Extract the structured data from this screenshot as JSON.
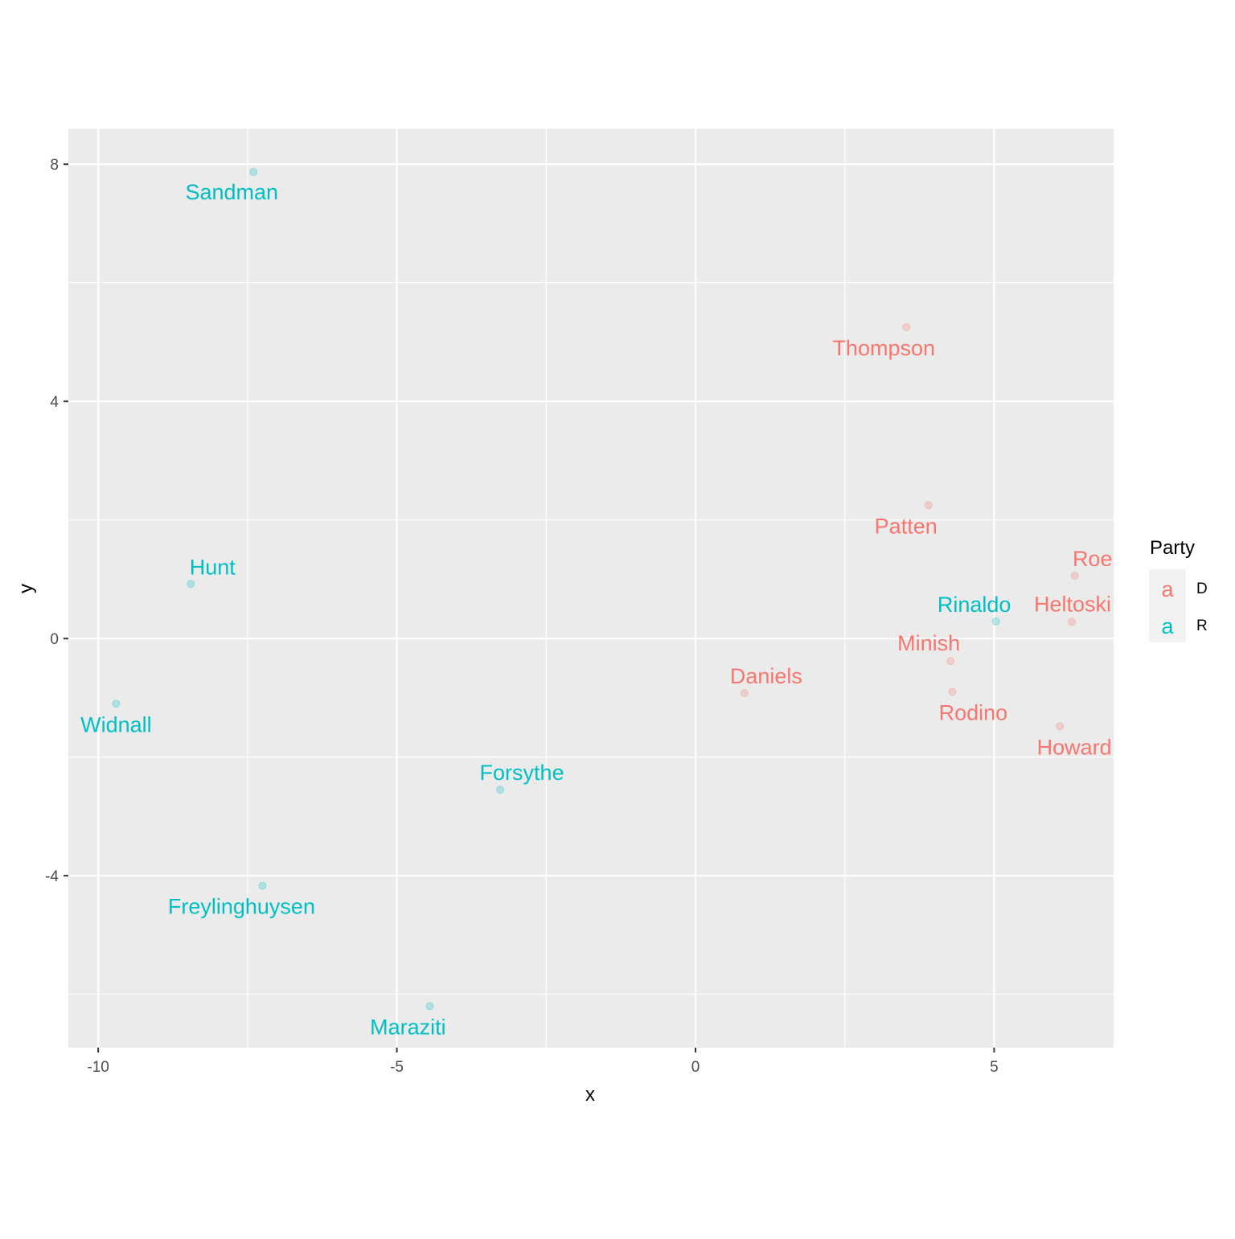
{
  "chart_data": {
    "type": "scatter",
    "title": "",
    "xlabel": "x",
    "ylabel": "y",
    "xlim": [
      -10.5,
      7.0
    ],
    "ylim": [
      -6.9,
      8.6
    ],
    "x_ticks": [
      -10,
      -5,
      0,
      5
    ],
    "x_tick_labels": [
      "-10",
      "-5",
      "0",
      "5"
    ],
    "y_ticks": [
      -4,
      0,
      4,
      8
    ],
    "y_tick_labels": [
      "-4",
      "0",
      "4",
      "8"
    ],
    "grid": true,
    "legend": {
      "title": "Party",
      "placement": "right",
      "entries": [
        {
          "key": "D",
          "label": "D",
          "color": "#F8766D",
          "glyph": "a"
        },
        {
          "key": "R",
          "label": "R",
          "color": "#00BFC4",
          "glyph": "a"
        }
      ]
    },
    "points": [
      {
        "label": "Sandman",
        "party": "R",
        "x": -7.4,
        "y": 7.87
      },
      {
        "label": "Hunt",
        "party": "R",
        "x": -8.45,
        "y": 0.92
      },
      {
        "label": "Widnall",
        "party": "R",
        "x": -9.7,
        "y": -1.1
      },
      {
        "label": "Forsythe",
        "party": "R",
        "x": -3.27,
        "y": -2.55
      },
      {
        "label": "Freylinghuysen",
        "party": "R",
        "x": -7.25,
        "y": -4.17
      },
      {
        "label": "Maraziti",
        "party": "R",
        "x": -4.45,
        "y": -6.2
      },
      {
        "label": "Rinaldo",
        "party": "R",
        "x": 5.03,
        "y": 0.29
      },
      {
        "label": "Thompson",
        "party": "D",
        "x": 3.53,
        "y": 5.25
      },
      {
        "label": "Patten",
        "party": "D",
        "x": 3.9,
        "y": 2.25
      },
      {
        "label": "Roe",
        "party": "D",
        "x": 6.35,
        "y": 1.06
      },
      {
        "label": "Heltoski",
        "party": "D",
        "x": 6.3,
        "y": 0.28
      },
      {
        "label": "Minish",
        "party": "D",
        "x": 4.27,
        "y": -0.38
      },
      {
        "label": "Daniels",
        "party": "D",
        "x": 0.82,
        "y": -0.92
      },
      {
        "label": "Rodino",
        "party": "D",
        "x": 4.3,
        "y": -0.9
      },
      {
        "label": "Howard",
        "party": "D",
        "x": 6.1,
        "y": -1.48
      }
    ]
  }
}
